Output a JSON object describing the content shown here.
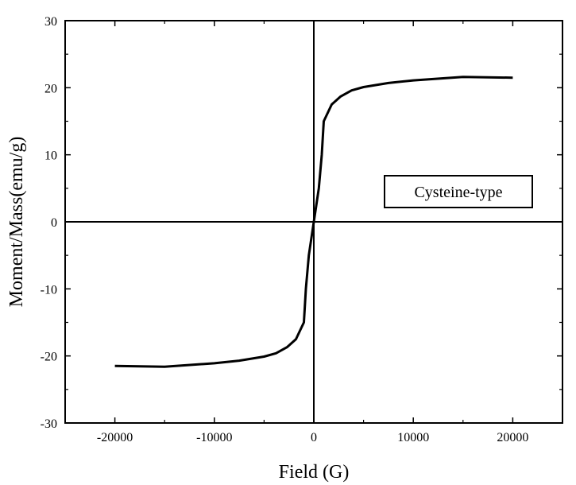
{
  "chart_data": {
    "type": "line",
    "title": "",
    "xlabel": "Field (G)",
    "ylabel": "Moment/Mass(emu/g)",
    "xlim": [
      -25000,
      25000
    ],
    "ylim": [
      -30,
      30
    ],
    "x_ticks": [
      -20000,
      -10000,
      0,
      10000,
      20000
    ],
    "x_tick_labels": [
      "-20000",
      "-10000",
      "0",
      "10000",
      "20000"
    ],
    "y_ticks": [
      -30,
      -20,
      -10,
      0,
      10,
      20,
      30
    ],
    "y_tick_labels": [
      "-30",
      "-20",
      "-10",
      "0",
      "10",
      "20",
      "30"
    ],
    "grid": false,
    "legend_position": "right",
    "zero_lines": true,
    "colors": {
      "line": "#000000",
      "axes": "#000000",
      "background": "#ffffff"
    },
    "series": [
      {
        "name": "Cysteine-type",
        "x": [
          -20000,
          -15000,
          -10000,
          -7500,
          -5000,
          -3800,
          -2700,
          -1800,
          -1000,
          -800,
          -500,
          0,
          500,
          800,
          1000,
          1800,
          2700,
          3800,
          5000,
          7500,
          10000,
          15000,
          20000
        ],
        "y": [
          -21.5,
          -21.6,
          -21.1,
          -20.7,
          -20.1,
          -19.6,
          -18.7,
          -17.5,
          -15.0,
          -10.0,
          -5.0,
          0,
          5.0,
          10.0,
          15.0,
          17.5,
          18.7,
          19.6,
          20.1,
          20.7,
          21.1,
          21.6,
          21.5
        ]
      }
    ]
  }
}
